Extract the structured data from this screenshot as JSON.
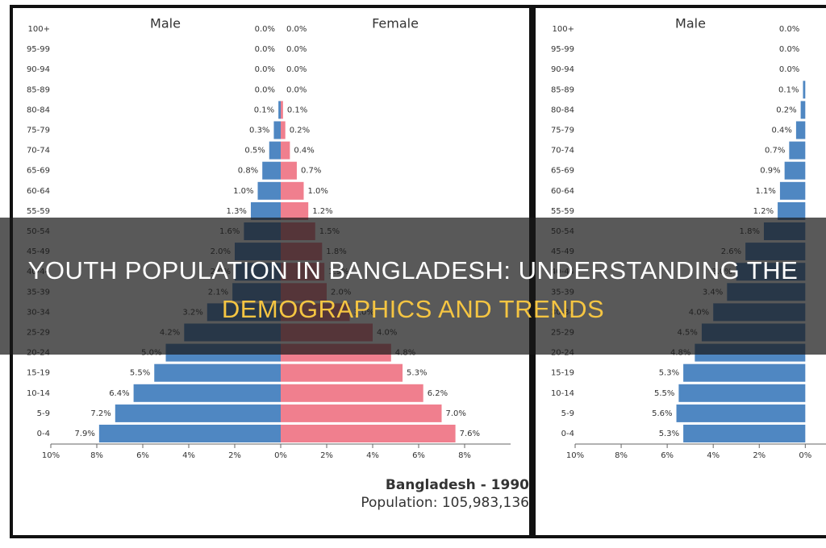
{
  "chart_data": [
    {
      "type": "pyramid",
      "title_left": "Male",
      "title_right": "Female",
      "footer_title": "Bangladesh - 1990",
      "footer_subtitle": "Population: 105,983,136",
      "categories": [
        "100+",
        "95-99",
        "90-94",
        "85-89",
        "80-84",
        "75-79",
        "70-74",
        "65-69",
        "60-64",
        "55-59",
        "50-54",
        "45-49",
        "40-44",
        "35-39",
        "30-34",
        "25-29",
        "20-24",
        "15-19",
        "10-14",
        "5-9",
        "0-4"
      ],
      "series": [
        {
          "name": "Male",
          "side": "left",
          "color": "#4f87c2",
          "values": [
            0.0,
            0.0,
            0.0,
            0.0,
            0.1,
            0.3,
            0.5,
            0.8,
            1.0,
            1.3,
            1.6,
            2.0,
            2.0,
            2.1,
            3.2,
            4.2,
            5.0,
            5.5,
            6.4,
            7.2,
            7.9
          ],
          "value_labels": [
            "0.0%",
            "0.0%",
            "0.0%",
            "0.0%",
            "0.1%",
            "0.3%",
            "0.5%",
            "0.8%",
            "1.0%",
            "1.3%",
            "1.6%",
            "2.0%",
            "2.0%",
            "2.1%",
            "3.2%",
            "4.2%",
            "5.0%",
            "5.5%",
            "6.4%",
            "7.2%",
            "7.9%"
          ]
        },
        {
          "name": "Female",
          "side": "right",
          "color": "#f07f8e",
          "values": [
            0.0,
            0.0,
            0.0,
            0.0,
            0.1,
            0.2,
            0.4,
            0.7,
            1.0,
            1.2,
            1.5,
            1.8,
            1.9,
            2.0,
            3.0,
            4.0,
            4.8,
            5.3,
            6.2,
            7.0,
            7.6
          ],
          "value_labels": [
            "0.0%",
            "0.0%",
            "0.0%",
            "0.0%",
            "0.1%",
            "0.2%",
            "0.4%",
            "0.7%",
            "1.0%",
            "1.2%",
            "1.5%",
            "1.8%",
            "1.9%",
            "2.0%",
            "3.0%",
            "4.0%",
            "4.8%",
            "5.3%",
            "6.2%",
            "7.0%",
            "7.6%"
          ]
        }
      ],
      "xlim": [
        -10,
        10
      ],
      "xticks": [
        {
          "value": -10,
          "label": "10%"
        },
        {
          "value": -8,
          "label": "8%"
        },
        {
          "value": -6,
          "label": "6%"
        },
        {
          "value": -4,
          "label": "4%"
        },
        {
          "value": -2,
          "label": "2%"
        },
        {
          "value": 0,
          "label": "0%"
        },
        {
          "value": 2,
          "label": "2%"
        },
        {
          "value": 4,
          "label": "4%"
        },
        {
          "value": 6,
          "label": "6%"
        },
        {
          "value": 8,
          "label": "8%"
        }
      ]
    },
    {
      "type": "pyramid",
      "title_left": "Male",
      "categories": [
        "100+",
        "95-99",
        "90-94",
        "85-89",
        "80-84",
        "75-79",
        "70-74",
        "65-69",
        "60-64",
        "55-59",
        "50-54",
        "45-49",
        "40-44",
        "35-39",
        "30-34",
        "25-29",
        "20-24",
        "15-19",
        "10-14",
        "5-9",
        "0-4"
      ],
      "series": [
        {
          "name": "Male",
          "side": "left",
          "color": "#4f87c2",
          "values": [
            0.0,
            0.0,
            0.0,
            0.1,
            0.2,
            0.4,
            0.7,
            0.9,
            1.1,
            1.2,
            1.8,
            2.6,
            3.0,
            3.4,
            4.0,
            4.5,
            4.8,
            5.3,
            5.5,
            5.6,
            5.3
          ],
          "value_labels": [
            "0.0%",
            "0.0%",
            "0.0%",
            "0.1%",
            "0.2%",
            "0.4%",
            "0.7%",
            "0.9%",
            "1.1%",
            "1.2%",
            "1.8%",
            "2.6%",
            "3.0%",
            "3.4%",
            "4.0%",
            "4.5%",
            "4.8%",
            "5.3%",
            "5.5%",
            "5.6%",
            "5.3%"
          ]
        }
      ],
      "xlim": [
        -10,
        0.9
      ],
      "xticks": [
        {
          "value": -10,
          "label": "10%"
        },
        {
          "value": -8,
          "label": "8%"
        },
        {
          "value": -6,
          "label": "6%"
        },
        {
          "value": -4,
          "label": "4%"
        },
        {
          "value": -2,
          "label": "2%"
        },
        {
          "value": 0,
          "label": "0%"
        }
      ]
    }
  ],
  "overlay": {
    "line1": "YOUTH POPULATION IN BANGLADESH: UNDERSTANDING THE",
    "line2": "DEMOGRAPHICS AND TRENDS"
  }
}
